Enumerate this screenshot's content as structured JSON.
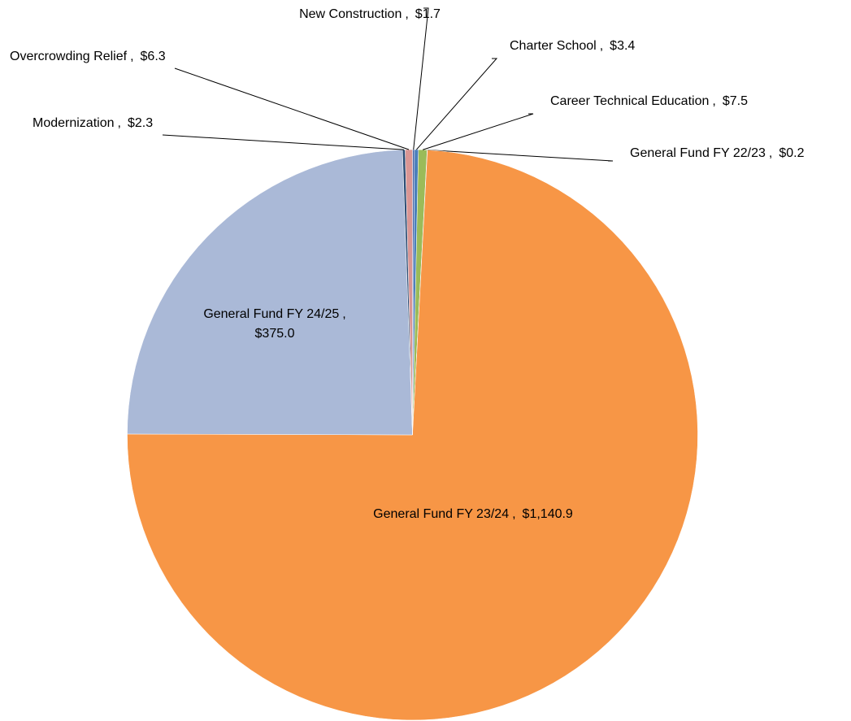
{
  "chart_data": {
    "type": "pie",
    "categories": [
      "New Construction",
      "Charter School",
      "Career Technical Education",
      "General Fund FY 22/23",
      "General Fund FY 23/24",
      "General Fund FY 24/25",
      "Modernization",
      "Overcrowding Relief"
    ],
    "values": [
      1.7,
      3.4,
      7.5,
      0.2,
      1140.9,
      375.0,
      2.3,
      6.3
    ],
    "value_labels": [
      "$1.7",
      "$3.4",
      "$7.5",
      "$0.2",
      "$1,140.9",
      "$375.0",
      "$2.3",
      "$6.3"
    ],
    "label_separator": ",",
    "colors": [
      "#3f64a8",
      "#4a7ebb",
      "#9bbb59",
      "#8064a2",
      "#f79646",
      "#aab9d7",
      "#2c4d75",
      "#d99694"
    ]
  }
}
